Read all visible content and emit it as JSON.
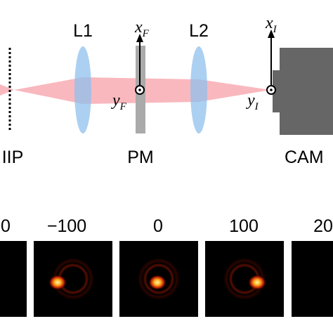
{
  "labels": {
    "iip": "IIP",
    "l1": "L1",
    "l2": "L2",
    "pm": "PM",
    "cam": "CAM"
  },
  "axes": {
    "xf": {
      "base": "x",
      "sub": "F"
    },
    "yf": {
      "base": "y",
      "sub": "F"
    },
    "xi": {
      "base": "x",
      "sub": "I"
    },
    "yi": {
      "base": "y",
      "sub": "I"
    }
  },
  "panels": [
    {
      "label": "0"
    },
    {
      "label": "−100"
    },
    {
      "label": "0"
    },
    {
      "label": "100"
    },
    {
      "label": "20"
    }
  ]
}
